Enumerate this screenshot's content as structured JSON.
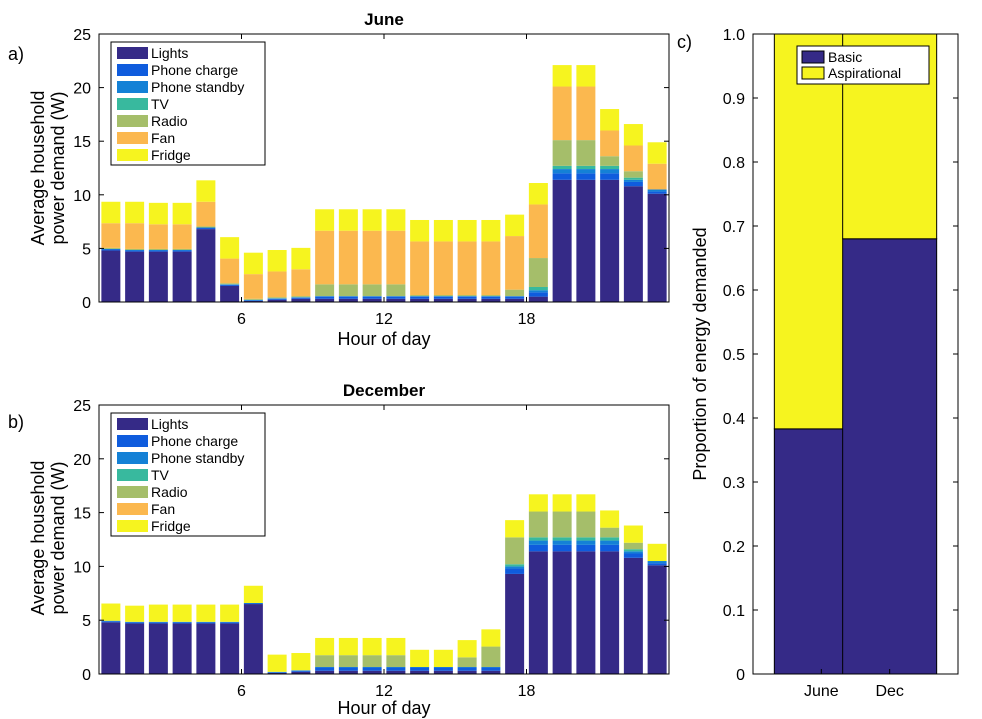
{
  "chart_data": [
    {
      "id": "a",
      "type": "bar",
      "stacked": true,
      "panel_label": "a)",
      "title": "June",
      "xlabel": "Hour of day",
      "ylabel": "Average household power demand (W)",
      "ylim": [
        0,
        25
      ],
      "yticks": [
        0,
        5,
        10,
        15,
        20,
        25
      ],
      "xticks": [
        6,
        12,
        18
      ],
      "legend_position": "top-left",
      "x": [
        1,
        2,
        3,
        4,
        5,
        6,
        7,
        8,
        9,
        10,
        11,
        12,
        13,
        14,
        15,
        16,
        17,
        18,
        19,
        20,
        21,
        22,
        23,
        24
      ],
      "series": [
        {
          "name": "Lights",
          "color": "#352a87",
          "values": [
            4.8,
            4.7,
            4.7,
            4.7,
            6.8,
            1.5,
            0.1,
            0.2,
            0.3,
            0.3,
            0.3,
            0.3,
            0.3,
            0.3,
            0.3,
            0.3,
            0.3,
            0.3,
            0.5,
            11.4,
            11.4,
            11.4,
            10.8,
            10.1
          ]
        },
        {
          "name": "Phone charge",
          "color": "#0f5cdd",
          "values": [
            0.1,
            0.1,
            0.1,
            0.1,
            0.1,
            0.1,
            0.05,
            0.1,
            0.1,
            0.2,
            0.2,
            0.2,
            0.2,
            0.2,
            0.2,
            0.2,
            0.2,
            0.2,
            0.4,
            0.6,
            0.6,
            0.6,
            0.4,
            0.2
          ]
        },
        {
          "name": "Phone standby",
          "color": "#1481d6",
          "values": [
            0.05,
            0.05,
            0.05,
            0.05,
            0.05,
            0.05,
            0.05,
            0.05,
            0.05,
            0.05,
            0.05,
            0.05,
            0.05,
            0.05,
            0.05,
            0.05,
            0.05,
            0.05,
            0.2,
            0.4,
            0.4,
            0.4,
            0.2,
            0.2
          ]
        },
        {
          "name": "TV",
          "color": "#38b99e",
          "values": [
            0,
            0,
            0,
            0,
            0,
            0,
            0,
            0,
            0,
            0,
            0,
            0,
            0,
            0,
            0,
            0,
            0,
            0,
            0.3,
            0.3,
            0.3,
            0.3,
            0.2,
            0
          ]
        },
        {
          "name": "Radio",
          "color": "#a5be6a",
          "values": [
            0.1,
            0.1,
            0.1,
            0.1,
            0.1,
            0.1,
            0.1,
            0.1,
            0.1,
            1.1,
            1.1,
            1.1,
            1.1,
            0.1,
            0.1,
            0.1,
            0.1,
            0.6,
            2.7,
            2.4,
            2.4,
            0.9,
            0.6,
            0
          ]
        },
        {
          "name": "Fan",
          "color": "#fbb84f",
          "values": [
            2.3,
            2.4,
            2.3,
            2.3,
            2.3,
            2.3,
            2.3,
            2.4,
            2.5,
            5.0,
            5.0,
            5.0,
            5.0,
            5.0,
            5.0,
            5.0,
            5.0,
            5.0,
            5.0,
            5.0,
            5.0,
            2.4,
            2.4,
            2.4
          ]
        },
        {
          "name": "Fridge",
          "color": "#f6f41f",
          "values": [
            2.0,
            2.0,
            2.0,
            2.0,
            2.0,
            2.0,
            2.0,
            2.0,
            2.0,
            2.0,
            2.0,
            2.0,
            2.0,
            2.0,
            2.0,
            2.0,
            2.0,
            2.0,
            2.0,
            2.0,
            2.0,
            2.0,
            2.0,
            2.0
          ]
        }
      ]
    },
    {
      "id": "b",
      "type": "bar",
      "stacked": true,
      "panel_label": "b)",
      "title": "December",
      "xlabel": "Hour of day",
      "ylabel": "Average household power demand (W)",
      "ylim": [
        0,
        25
      ],
      "yticks": [
        0,
        5,
        10,
        15,
        20,
        25
      ],
      "xticks": [
        6,
        12,
        18
      ],
      "legend_position": "top-left",
      "x": [
        1,
        2,
        3,
        4,
        5,
        6,
        7,
        8,
        9,
        10,
        11,
        12,
        13,
        14,
        15,
        16,
        17,
        18,
        19,
        20,
        21,
        22,
        23,
        24
      ],
      "series": [
        {
          "name": "Lights",
          "color": "#352a87",
          "values": [
            4.8,
            4.7,
            4.7,
            4.7,
            4.7,
            4.7,
            6.5,
            0.1,
            0.2,
            0.3,
            0.3,
            0.3,
            0.3,
            0.3,
            0.3,
            0.3,
            0.3,
            9.3,
            11.4,
            11.4,
            11.4,
            11.4,
            10.8,
            10.1
          ]
        },
        {
          "name": "Phone charge",
          "color": "#0f5cdd",
          "values": [
            0.1,
            0.1,
            0.1,
            0.1,
            0.1,
            0.1,
            0.05,
            0.05,
            0.1,
            0.3,
            0.3,
            0.3,
            0.3,
            0.3,
            0.3,
            0.3,
            0.3,
            0.5,
            0.6,
            0.6,
            0.6,
            0.6,
            0.4,
            0.2
          ]
        },
        {
          "name": "Phone standby",
          "color": "#1481d6",
          "values": [
            0.05,
            0.05,
            0.05,
            0.05,
            0.05,
            0.05,
            0.05,
            0.05,
            0.05,
            0.05,
            0.05,
            0.05,
            0.05,
            0.05,
            0.05,
            0.05,
            0.05,
            0.2,
            0.4,
            0.4,
            0.4,
            0.4,
            0.2,
            0.2
          ]
        },
        {
          "name": "TV",
          "color": "#38b99e",
          "values": [
            0,
            0,
            0,
            0,
            0,
            0,
            0,
            0,
            0,
            0,
            0,
            0,
            0,
            0,
            0,
            0,
            0,
            0.2,
            0.3,
            0.3,
            0.3,
            0.3,
            0.2,
            0
          ]
        },
        {
          "name": "Radio",
          "color": "#a5be6a",
          "values": [
            0,
            0,
            0,
            0,
            0,
            0,
            0,
            0,
            0,
            1.1,
            1.1,
            1.1,
            1.1,
            0,
            0,
            0.9,
            1.9,
            2.5,
            2.4,
            2.4,
            2.4,
            0.9,
            0.6,
            0
          ]
        },
        {
          "name": "Fan",
          "color": "#fbb84f",
          "values": [
            0,
            0,
            0,
            0,
            0,
            0,
            0,
            0,
            0,
            0,
            0,
            0,
            0,
            0,
            0,
            0,
            0,
            0,
            0,
            0,
            0,
            0,
            0,
            0
          ]
        },
        {
          "name": "Fridge",
          "color": "#f6f41f",
          "values": [
            1.6,
            1.5,
            1.6,
            1.6,
            1.6,
            1.6,
            1.6,
            1.6,
            1.6,
            1.6,
            1.6,
            1.6,
            1.6,
            1.6,
            1.6,
            1.6,
            1.6,
            1.6,
            1.6,
            1.6,
            1.6,
            1.6,
            1.6,
            1.6
          ]
        }
      ]
    },
    {
      "id": "c",
      "type": "bar",
      "stacked": true,
      "panel_label": "c)",
      "ylabel": "Proportion of energy demanded",
      "ylim": [
        0,
        1
      ],
      "yticks": [
        "0",
        "0.1",
        "0.2",
        "0.3",
        "0.4",
        "0.5",
        "0.6",
        "0.7",
        "0.8",
        "0.9",
        "1.0"
      ],
      "categories": [
        "June",
        "Dec"
      ],
      "legend_position": "top",
      "series": [
        {
          "name": "Basic",
          "color": "#352a87",
          "values": [
            0.383,
            0.68
          ]
        },
        {
          "name": "Aspirational",
          "color": "#f6f41f",
          "values": [
            0.617,
            0.32
          ]
        }
      ]
    }
  ]
}
